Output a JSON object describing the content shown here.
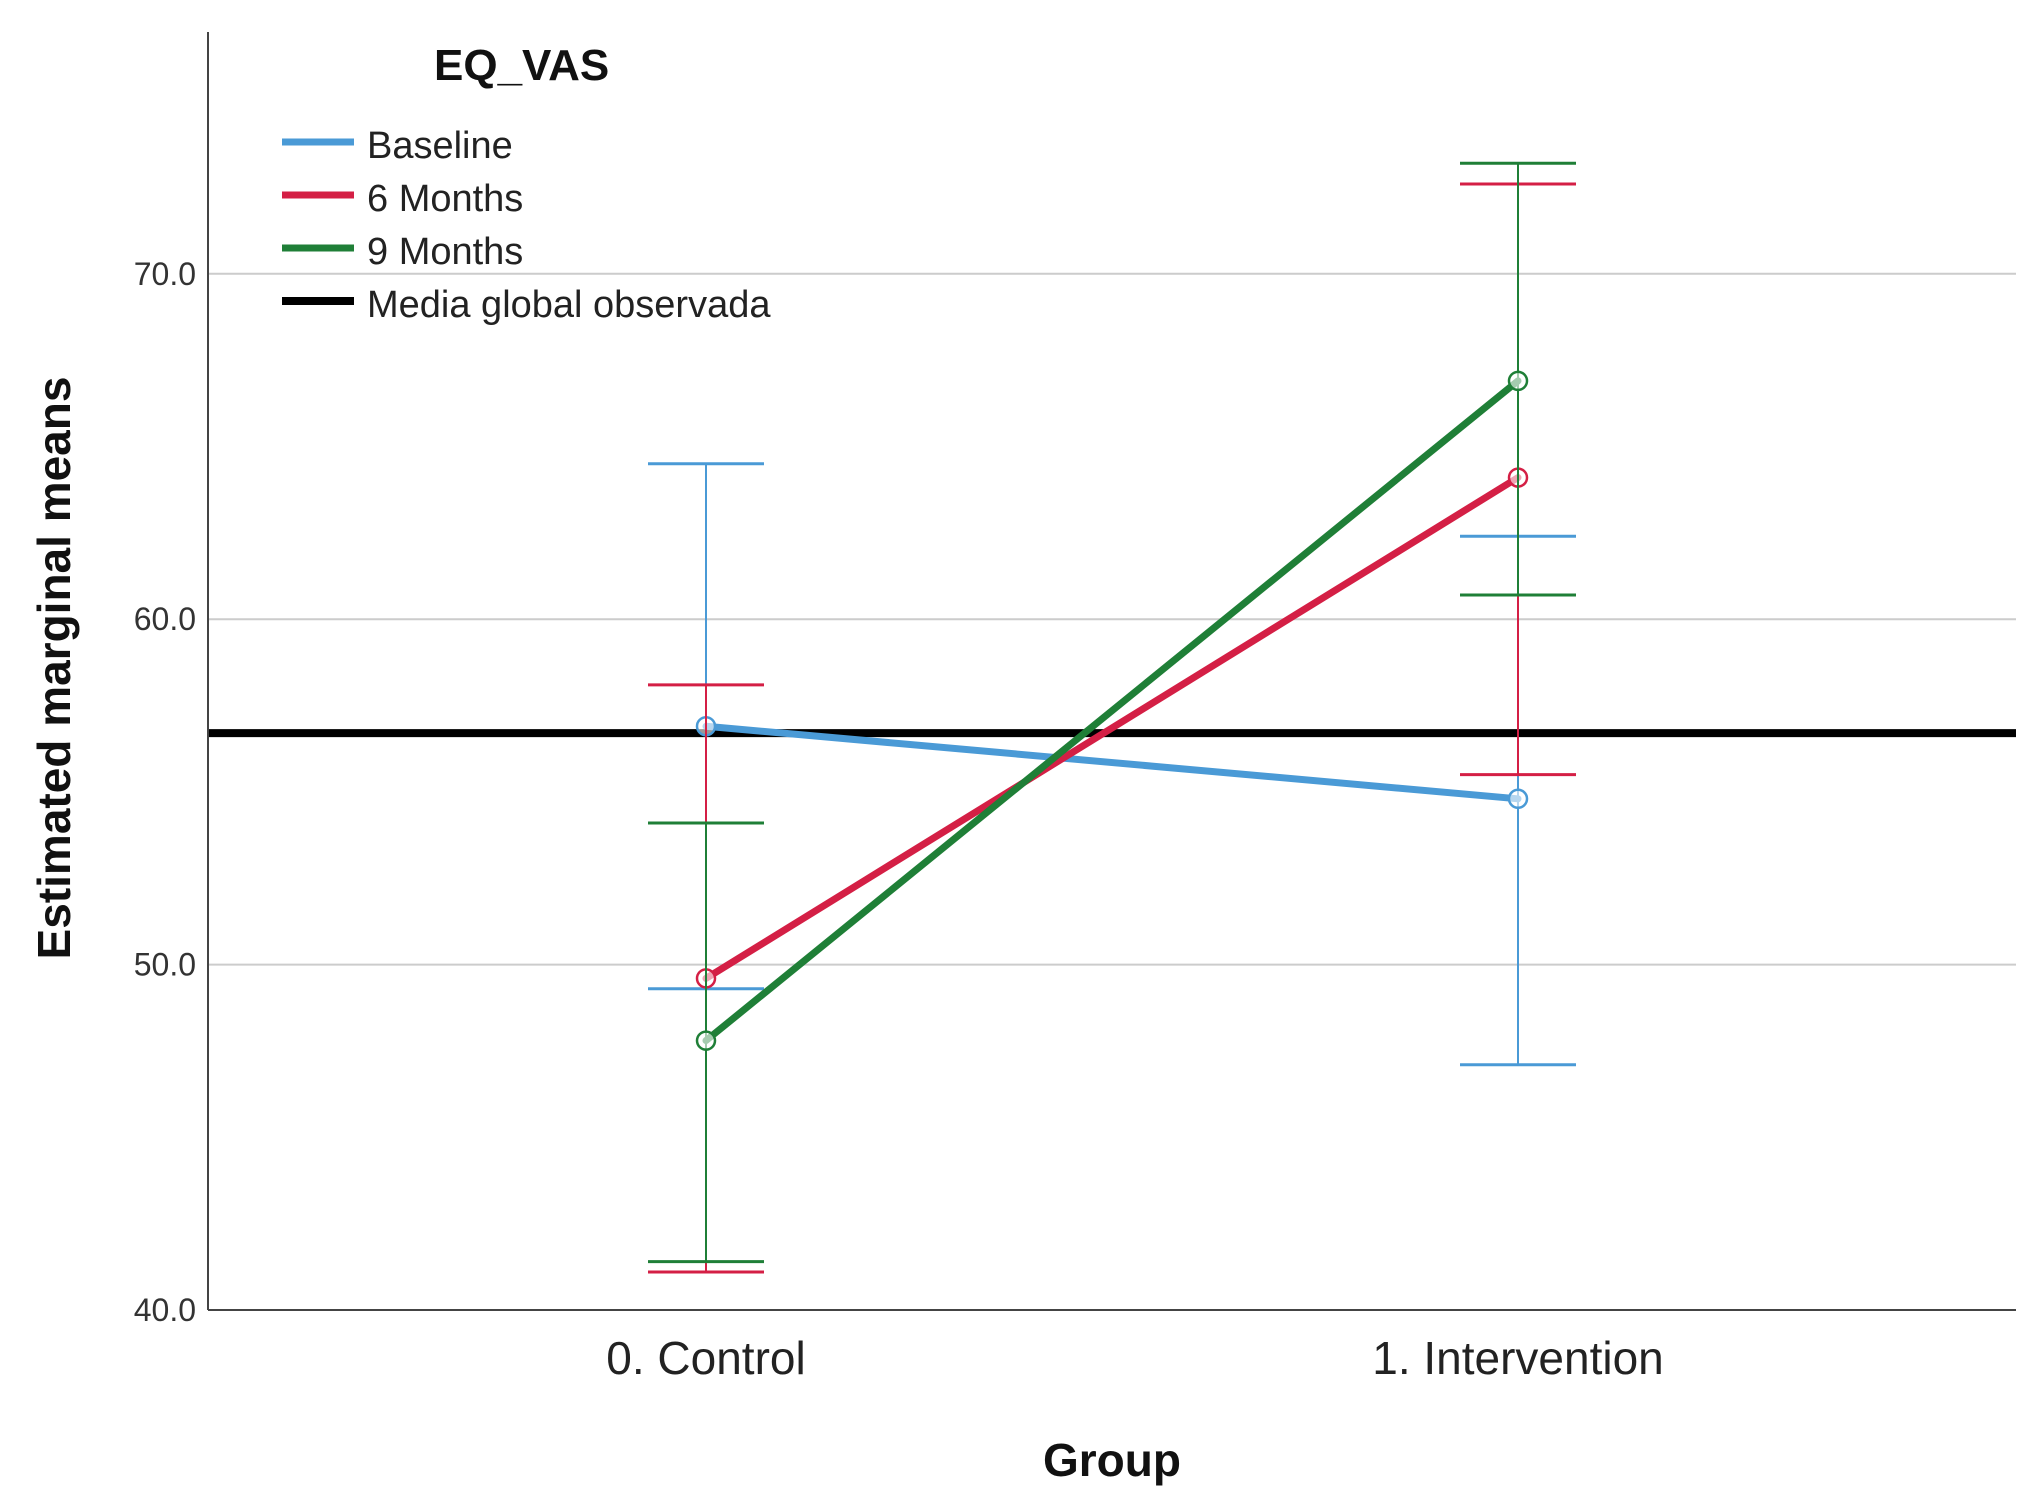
{
  "chart_data": {
    "type": "line",
    "title": "EQ_VAS",
    "xlabel": "Group",
    "ylabel": "Estimated marginal means",
    "categories": [
      "0. Control",
      "1. Intervention"
    ],
    "ylim": [
      40,
      77
    ],
    "yticks": [
      40,
      50,
      60,
      70
    ],
    "ytick_labels": [
      "40.0",
      "50.0",
      "60.0",
      "70.0"
    ],
    "grid": true,
    "legend_position": "top-left",
    "series": [
      {
        "name": "Baseline",
        "color": "#4a9ad6",
        "values": [
          56.9,
          54.8
        ],
        "ci_low": [
          49.3,
          47.1
        ],
        "ci_high": [
          64.5,
          62.4
        ]
      },
      {
        "name": "6 Months",
        "color": "#d41f45",
        "values": [
          49.6,
          64.1
        ],
        "ci_low": [
          41.1,
          55.5
        ],
        "ci_high": [
          58.1,
          72.6
        ]
      },
      {
        "name": "9 Months",
        "color": "#1f7f37",
        "values": [
          47.8,
          66.9
        ],
        "ci_low": [
          41.4,
          60.7
        ],
        "ci_high": [
          54.1,
          73.2
        ]
      }
    ],
    "reference_line": {
      "name": "Media global observada",
      "value": 56.7,
      "color": "#000000"
    }
  }
}
